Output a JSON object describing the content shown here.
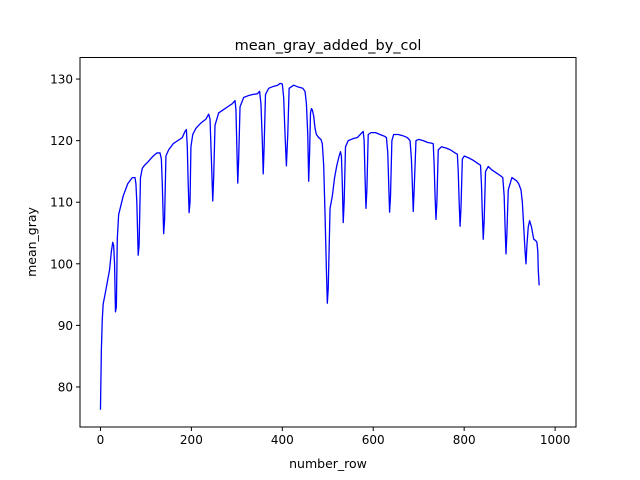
{
  "chart_data": {
    "type": "line",
    "title": "mean_gray_added_by_col",
    "xlabel": "number_row",
    "ylabel": "mean_gray",
    "xlim": [
      -45,
      1046
    ],
    "ylim": [
      73.5,
      133.5
    ],
    "xticks": [
      0,
      200,
      400,
      600,
      800,
      1000
    ],
    "yticks": [
      80,
      90,
      100,
      110,
      120,
      130
    ],
    "xtick_labels": [
      "0",
      "200",
      "400",
      "600",
      "800",
      "1000"
    ],
    "ytick_labels": [
      "80",
      "90",
      "100",
      "110",
      "120",
      "130"
    ],
    "grid": false,
    "series": [
      {
        "color": "#0000ff",
        "points": [
          [
            0,
            76.3
          ],
          [
            2,
            86
          ],
          [
            4,
            91
          ],
          [
            6,
            93.5
          ],
          [
            10,
            95
          ],
          [
            15,
            97
          ],
          [
            20,
            99
          ],
          [
            24,
            102
          ],
          [
            27,
            103.5
          ],
          [
            29,
            103
          ],
          [
            31,
            100
          ],
          [
            33,
            92.2
          ],
          [
            35,
            93
          ],
          [
            37,
            104
          ],
          [
            40,
            108
          ],
          [
            45,
            109.5
          ],
          [
            50,
            111
          ],
          [
            55,
            112
          ],
          [
            60,
            113
          ],
          [
            65,
            113.5
          ],
          [
            70,
            114
          ],
          [
            76,
            114
          ],
          [
            78,
            113
          ],
          [
            80,
            110
          ],
          [
            83,
            101.4
          ],
          [
            85,
            103
          ],
          [
            88,
            114
          ],
          [
            92,
            115.5
          ],
          [
            97,
            116
          ],
          [
            104,
            116.5
          ],
          [
            110,
            117
          ],
          [
            116,
            117.5
          ],
          [
            124,
            118
          ],
          [
            131,
            118
          ],
          [
            134,
            117
          ],
          [
            136,
            113
          ],
          [
            139,
            104.9
          ],
          [
            141,
            107
          ],
          [
            144,
            117.5
          ],
          [
            150,
            118.5
          ],
          [
            160,
            119.5
          ],
          [
            170,
            120
          ],
          [
            180,
            120.5
          ],
          [
            186,
            121.5
          ],
          [
            189,
            121.8
          ],
          [
            191,
            119
          ],
          [
            193,
            113
          ],
          [
            195,
            108.3
          ],
          [
            197,
            110
          ],
          [
            199,
            119
          ],
          [
            203,
            121
          ],
          [
            210,
            122
          ],
          [
            220,
            122.8
          ],
          [
            232,
            123.5
          ],
          [
            238,
            124.3
          ],
          [
            241,
            123.5
          ],
          [
            244,
            117
          ],
          [
            247,
            110.2
          ],
          [
            249,
            114
          ],
          [
            252,
            122.5
          ],
          [
            260,
            124.5
          ],
          [
            270,
            125
          ],
          [
            280,
            125.5
          ],
          [
            290,
            126
          ],
          [
            296,
            126.5
          ],
          [
            298,
            125
          ],
          [
            300,
            119
          ],
          [
            302,
            113.1
          ],
          [
            304,
            117
          ],
          [
            307,
            125.5
          ],
          [
            315,
            127
          ],
          [
            325,
            127.3
          ],
          [
            335,
            127.5
          ],
          [
            345,
            127.6
          ],
          [
            350,
            128
          ],
          [
            353,
            126
          ],
          [
            356,
            120
          ],
          [
            358,
            114.6
          ],
          [
            360,
            119
          ],
          [
            363,
            127.5
          ],
          [
            370,
            128.5
          ],
          [
            380,
            128.8
          ],
          [
            390,
            129
          ],
          [
            395,
            129.3
          ],
          [
            400,
            129.2
          ],
          [
            403,
            127
          ],
          [
            406,
            121
          ],
          [
            409,
            115.9
          ],
          [
            412,
            121
          ],
          [
            415,
            128.5
          ],
          [
            425,
            129
          ],
          [
            435,
            128.7
          ],
          [
            445,
            128.5
          ],
          [
            450,
            128
          ],
          [
            453,
            126
          ],
          [
            456,
            121
          ],
          [
            458,
            113.4
          ],
          [
            460,
            118
          ],
          [
            462,
            124.5
          ],
          [
            464,
            125.2
          ],
          [
            466,
            125
          ],
          [
            469,
            124
          ],
          [
            472,
            122
          ],
          [
            475,
            121
          ],
          [
            480,
            120.5
          ],
          [
            485,
            120.2
          ],
          [
            488,
            119.5
          ],
          [
            491,
            116
          ],
          [
            494,
            108
          ],
          [
            497,
            99
          ],
          [
            499,
            93.6
          ],
          [
            501,
            96
          ],
          [
            505,
            109
          ],
          [
            510,
            111
          ],
          [
            515,
            114
          ],
          [
            520,
            116
          ],
          [
            525,
            117.5
          ],
          [
            528,
            118.2
          ],
          [
            530,
            117.5
          ],
          [
            532,
            113
          ],
          [
            534,
            106.7
          ],
          [
            536,
            110
          ],
          [
            539,
            119
          ],
          [
            545,
            120
          ],
          [
            555,
            120.3
          ],
          [
            565,
            120.5
          ],
          [
            574,
            121.2
          ],
          [
            578,
            121.5
          ],
          [
            580,
            120
          ],
          [
            582,
            114
          ],
          [
            584,
            109
          ],
          [
            586,
            112
          ],
          [
            589,
            121
          ],
          [
            595,
            121.3
          ],
          [
            605,
            121.3
          ],
          [
            615,
            121
          ],
          [
            625,
            120.7
          ],
          [
            629,
            120.5
          ],
          [
            632,
            118
          ],
          [
            634,
            113
          ],
          [
            636,
            108.4
          ],
          [
            638,
            111
          ],
          [
            641,
            120
          ],
          [
            645,
            121
          ],
          [
            655,
            121
          ],
          [
            665,
            120.8
          ],
          [
            675,
            120.5
          ],
          [
            681,
            120
          ],
          [
            684,
            117
          ],
          [
            686,
            113
          ],
          [
            688,
            108.5
          ],
          [
            690,
            112
          ],
          [
            694,
            120
          ],
          [
            700,
            120.2
          ],
          [
            710,
            120
          ],
          [
            720,
            119.7
          ],
          [
            728,
            119.6
          ],
          [
            732,
            119.5
          ],
          [
            734,
            116
          ],
          [
            736,
            111
          ],
          [
            738,
            107.2
          ],
          [
            740,
            110
          ],
          [
            743,
            118.5
          ],
          [
            750,
            119
          ],
          [
            760,
            118.8
          ],
          [
            770,
            118.5
          ],
          [
            780,
            118
          ],
          [
            785,
            117.8
          ],
          [
            787,
            115
          ],
          [
            789,
            110
          ],
          [
            791,
            106.1
          ],
          [
            793,
            109
          ],
          [
            796,
            117
          ],
          [
            800,
            117.5
          ],
          [
            810,
            117.2
          ],
          [
            820,
            116.8
          ],
          [
            830,
            116.3
          ],
          [
            836,
            116
          ],
          [
            838,
            113
          ],
          [
            840,
            108
          ],
          [
            842,
            104
          ],
          [
            844,
            107
          ],
          [
            847,
            115
          ],
          [
            853,
            115.8
          ],
          [
            860,
            115.3
          ],
          [
            870,
            114.8
          ],
          [
            880,
            114.3
          ],
          [
            885,
            114
          ],
          [
            888,
            111
          ],
          [
            890,
            106
          ],
          [
            892,
            101.6
          ],
          [
            894,
            105
          ],
          [
            897,
            112
          ],
          [
            905,
            114
          ],
          [
            915,
            113.5
          ],
          [
            920,
            113
          ],
          [
            925,
            112
          ],
          [
            928,
            110
          ],
          [
            931,
            106
          ],
          [
            934,
            102
          ],
          [
            936,
            100
          ],
          [
            938,
            103
          ],
          [
            941,
            106
          ],
          [
            944,
            107
          ],
          [
            948,
            106
          ],
          [
            953,
            104
          ],
          [
            957,
            103.8
          ],
          [
            960,
            103.5
          ],
          [
            962,
            102
          ],
          [
            963,
            99
          ],
          [
            965,
            96.5
          ]
        ]
      }
    ]
  }
}
